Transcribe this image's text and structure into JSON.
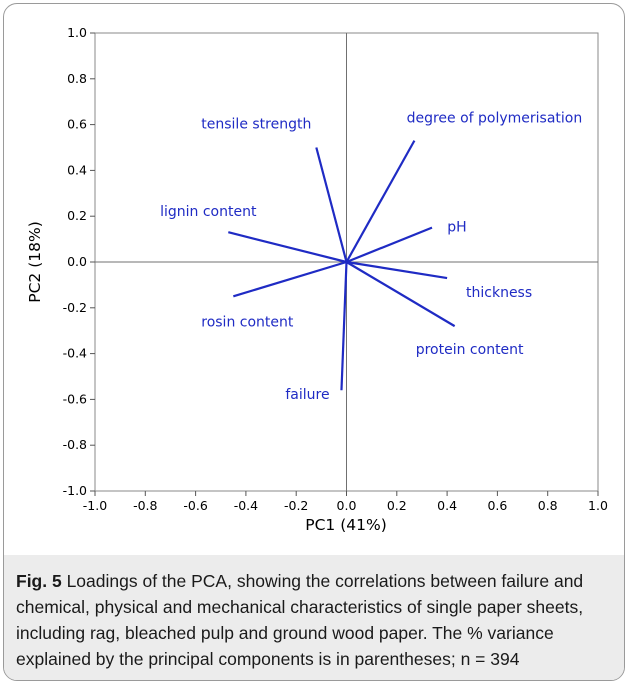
{
  "figure": {
    "label": "Fig. 5",
    "caption": "Loadings of the PCA, showing the correlations between failure and chemical, physical and mechanical characteristics of single paper sheets, including rag, bleached pulp and ground wood paper. The  % variance explained by the principal components is in parentheses; n = 394"
  },
  "chart_data": {
    "type": "scatter",
    "title": "",
    "xlabel": "PC1 (41%)",
    "ylabel": "PC2 (18%)",
    "xlim": [
      -1.0,
      1.0
    ],
    "ylim": [
      -1.0,
      1.0
    ],
    "xticks": [
      -1.0,
      -0.8,
      -0.6,
      -0.4,
      -0.2,
      0.0,
      0.2,
      0.4,
      0.6,
      0.8,
      1.0
    ],
    "yticks": [
      -1.0,
      -0.8,
      -0.6,
      -0.4,
      -0.2,
      0.0,
      0.2,
      0.4,
      0.6,
      0.8,
      1.0
    ],
    "xtick_labels": [
      "-1.0",
      "-0.8",
      "-0.6",
      "-0.4",
      "-0.2",
      "0.0",
      "0.2",
      "0.4",
      "0.6",
      "0.8",
      "1.0"
    ],
    "ytick_labels": [
      "-1.0",
      "-0.8",
      "-0.6",
      "-0.4",
      "-0.2",
      "0.0",
      "0.2",
      "0.4",
      "0.6",
      "0.8",
      "1.0"
    ],
    "grid": false,
    "reference_lines": [
      0.0
    ],
    "vector_color": "#1f2bc4",
    "loadings": [
      {
        "name": "tensile strength",
        "x": -0.12,
        "y": 0.5
      },
      {
        "name": "degree of polymerisation",
        "x": 0.27,
        "y": 0.53
      },
      {
        "name": "lignin content",
        "x": -0.47,
        "y": 0.13
      },
      {
        "name": "pH",
        "x": 0.34,
        "y": 0.15
      },
      {
        "name": "thickness",
        "x": 0.4,
        "y": -0.07
      },
      {
        "name": "rosin content",
        "x": -0.45,
        "y": -0.15
      },
      {
        "name": "protein content",
        "x": 0.43,
        "y": -0.28
      },
      {
        "name": "failure",
        "x": -0.02,
        "y": -0.56
      }
    ]
  }
}
